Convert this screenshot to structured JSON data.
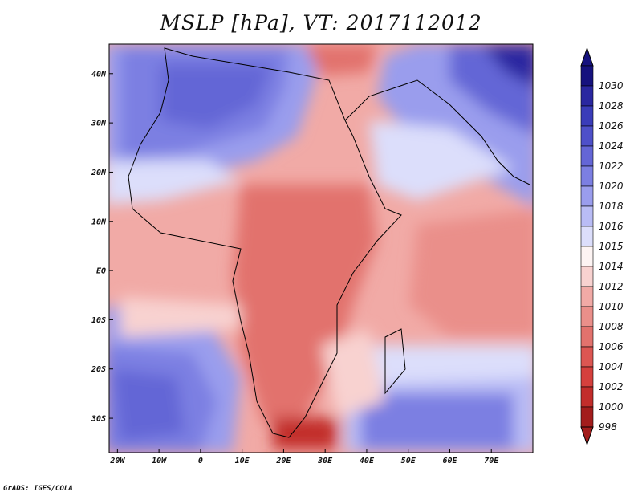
{
  "title": "MSLP [hPa], VT: 2017112012",
  "footer": "GrADS: IGES/COLA",
  "map": {
    "lon_range": [
      -22,
      80
    ],
    "lat_range": [
      -37,
      46
    ],
    "x_ticks": [
      {
        "value": -20,
        "label": "20W"
      },
      {
        "value": -10,
        "label": "10W"
      },
      {
        "value": 0,
        "label": "0"
      },
      {
        "value": 10,
        "label": "10E"
      },
      {
        "value": 20,
        "label": "20E"
      },
      {
        "value": 30,
        "label": "30E"
      },
      {
        "value": 40,
        "label": "40E"
      },
      {
        "value": 50,
        "label": "50E"
      },
      {
        "value": 60,
        "label": "60E"
      },
      {
        "value": 70,
        "label": "70E"
      }
    ],
    "y_ticks": [
      {
        "value": 40,
        "label": "40N"
      },
      {
        "value": 30,
        "label": "30N"
      },
      {
        "value": 20,
        "label": "20N"
      },
      {
        "value": 10,
        "label": "10N"
      },
      {
        "value": 0,
        "label": "EQ"
      },
      {
        "value": -10,
        "label": "10S"
      },
      {
        "value": -20,
        "label": "20S"
      },
      {
        "value": -30,
        "label": "30S"
      }
    ]
  },
  "colorbar": {
    "levels": [
      {
        "label": "1030",
        "color": "#16127e"
      },
      {
        "label": "1028",
        "color": "#2a27a0"
      },
      {
        "label": "1026",
        "color": "#3a3cb9"
      },
      {
        "label": "1024",
        "color": "#4e50c9"
      },
      {
        "label": "1022",
        "color": "#6466d6"
      },
      {
        "label": "1020",
        "color": "#7c7fe2"
      },
      {
        "label": "1018",
        "color": "#9a9ded"
      },
      {
        "label": "1016",
        "color": "#b9bcf5"
      },
      {
        "label": "1015",
        "color": "#dcdefb"
      },
      {
        "label": "1014",
        "color": "#fdf4f3"
      },
      {
        "label": "1012",
        "color": "#f8d2d0"
      },
      {
        "label": "1010",
        "color": "#f1aaa6"
      },
      {
        "label": "1008",
        "color": "#ea8f8a"
      },
      {
        "label": "1006",
        "color": "#e2726d"
      },
      {
        "label": "1004",
        "color": "#dc5652"
      },
      {
        "label": "1002",
        "color": "#d5403d"
      },
      {
        "label": "1000",
        "color": "#c22d2b"
      },
      {
        "label": "998",
        "color": "#a31d1c"
      }
    ]
  }
}
